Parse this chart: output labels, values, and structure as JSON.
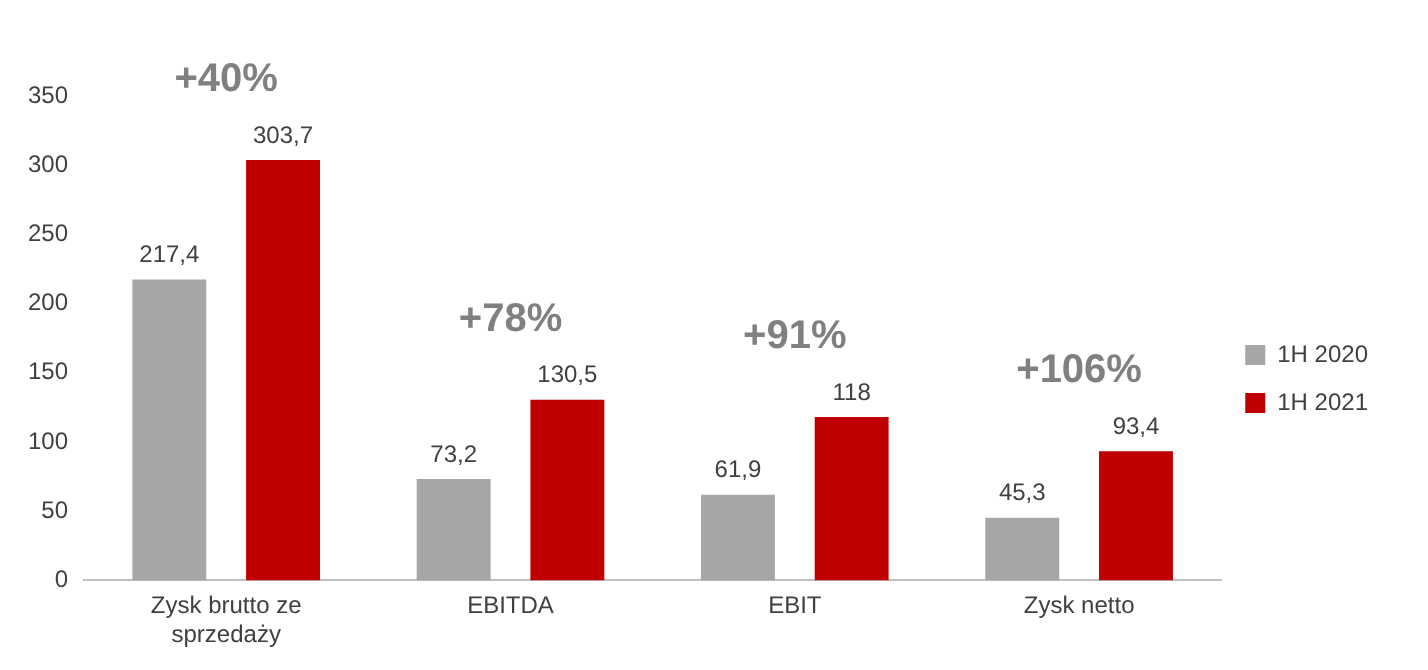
{
  "chart_data": {
    "type": "bar",
    "categories": [
      "Zysk brutto ze sprzedaży",
      "EBITDA",
      "EBIT",
      "Zysk netto"
    ],
    "series": [
      {
        "name": "1H 2020",
        "color": "#a6a6a6",
        "values": [
          217.4,
          73.2,
          61.9,
          45.3
        ],
        "value_labels": [
          "217,4",
          "73,2",
          "61,9",
          "45,3"
        ]
      },
      {
        "name": "1H 2021",
        "color": "#c00000",
        "values": [
          303.7,
          130.5,
          118,
          93.4
        ],
        "value_labels": [
          "303,7",
          "130,5",
          "118",
          "93,4"
        ]
      }
    ],
    "annotations": [
      "+40%",
      "+78%",
      "+91%",
      "+106%"
    ],
    "ylim": [
      0,
      350
    ],
    "yticks": [
      0,
      50,
      100,
      150,
      200,
      250,
      300,
      350
    ],
    "grid": false,
    "legend": "right"
  }
}
